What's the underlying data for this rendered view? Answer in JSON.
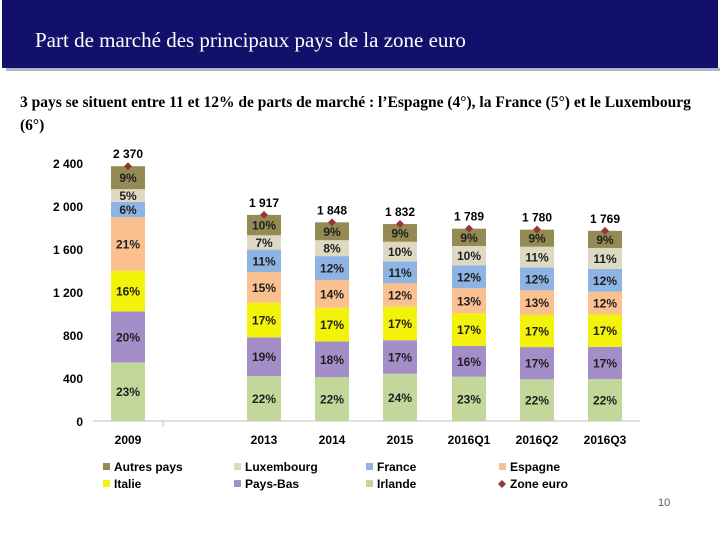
{
  "header": {
    "title": "Part de marché des principaux pays de la zone euro"
  },
  "subtitle": "3 pays se situent entre 11 et 12% de parts de marché : l’Espagne (4°), la France (5°) et le Luxembourg (6°)",
  "page_number": "10",
  "chart_data": {
    "type": "bar",
    "stacked": true,
    "categories": [
      "2009",
      "2013",
      "2014",
      "2015",
      "2016Q1",
      "2016Q2",
      "2016Q3"
    ],
    "ylim": [
      0,
      2400
    ],
    "yticks": [
      0,
      400,
      800,
      1200,
      1600,
      2000,
      2400
    ],
    "ytick_labels": [
      "0",
      "400",
      "800",
      "1 200",
      "1 600",
      "2 000",
      "2 400"
    ],
    "series": [
      {
        "name": "Irlande",
        "color": "#c4d79b",
        "pct": [
          23,
          22,
          22,
          24,
          23,
          22,
          22
        ],
        "labels": [
          "23%",
          "22%",
          "22%",
          "24%",
          "23%",
          "22%",
          "22%"
        ]
      },
      {
        "name": "Pays-Bas",
        "color": "#a48ec8",
        "pct": [
          20,
          19,
          18,
          17,
          16,
          17,
          17
        ],
        "labels": [
          "20%",
          "19%",
          "18%",
          "17%",
          "16%",
          "17%",
          "17%"
        ]
      },
      {
        "name": "Italie",
        "color": "#f2f20a",
        "pct": [
          16,
          17,
          17,
          17,
          17,
          17,
          17
        ],
        "labels": [
          "16%",
          "17%",
          "17%",
          "17%",
          "17%",
          "17%",
          "17%"
        ]
      },
      {
        "name": "Espagne",
        "color": "#fac090",
        "pct": [
          21,
          15,
          14,
          12,
          13,
          13,
          12
        ],
        "labels": [
          "21%",
          "15%",
          "14%",
          "12%",
          "13%",
          "13%",
          "12%"
        ]
      },
      {
        "name": "France",
        "color": "#8db4e2",
        "pct": [
          6,
          11,
          12,
          11,
          12,
          12,
          12
        ],
        "labels": [
          "6%",
          "11%",
          "12%",
          "11%",
          "12%",
          "12%",
          "12%"
        ]
      },
      {
        "name": "Luxembourg",
        "color": "#ddd9c3",
        "pct": [
          5,
          7,
          8,
          10,
          10,
          11,
          11
        ],
        "labels": [
          "5%",
          "7%",
          "8%",
          "10%",
          "10%",
          "11%",
          "11%"
        ]
      },
      {
        "name": "Autres pays",
        "color": "#948a54",
        "pct": [
          9,
          10,
          9,
          9,
          9,
          9,
          9
        ],
        "labels": [
          "9%",
          "10%",
          "9%",
          "9%",
          "9%",
          "9%",
          "9%"
        ]
      }
    ],
    "totals": {
      "name": "Zone euro",
      "color": "#953735",
      "values": [
        2370,
        1917,
        1848,
        1832,
        1789,
        1780,
        1769
      ],
      "labels": [
        "2 370",
        "1 917",
        "1 848",
        "1 832",
        "1 789",
        "1 780",
        "1 769"
      ]
    },
    "legend_order": [
      "Autres pays",
      "Luxembourg",
      "France",
      "Espagne",
      "Italie",
      "Pays-Bas",
      "Irlande",
      "Zone euro"
    ],
    "legend_position": "bottom"
  }
}
